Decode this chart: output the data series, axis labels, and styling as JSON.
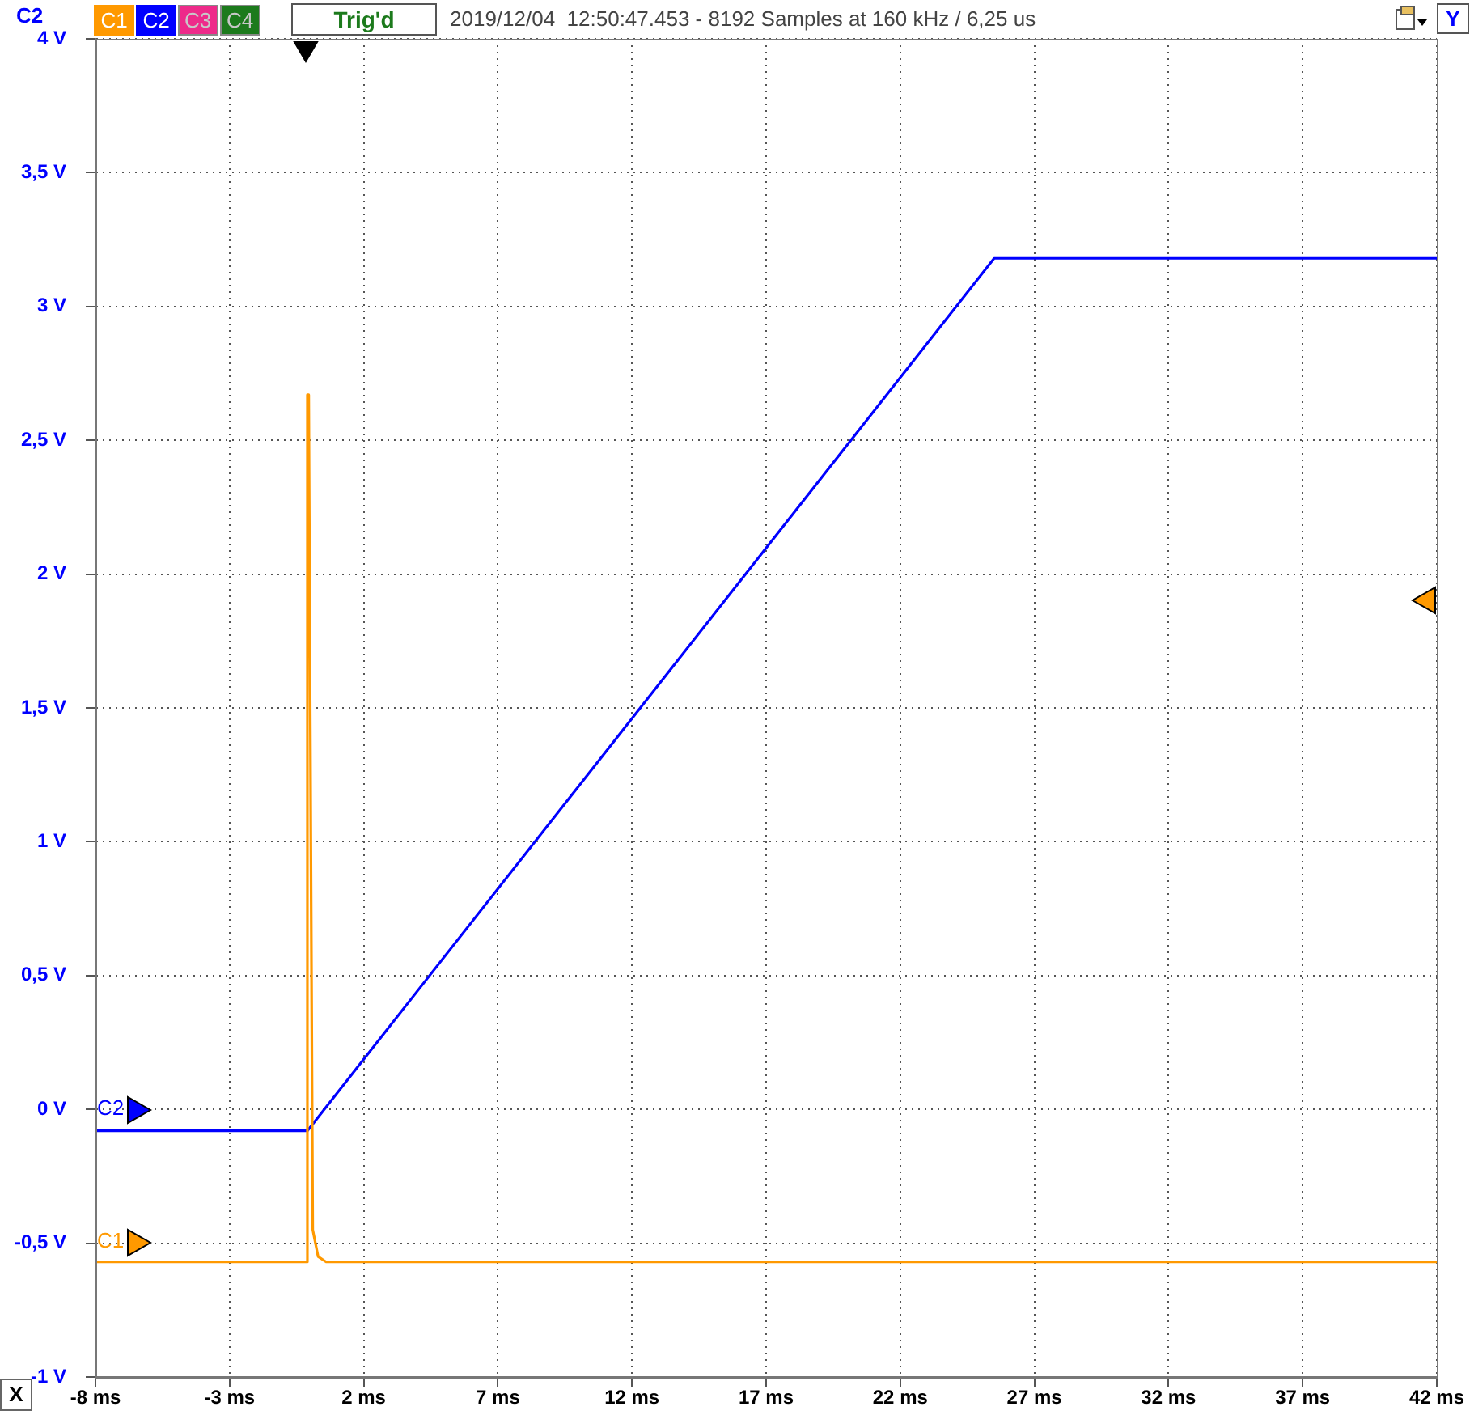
{
  "chart_data": {
    "type": "line",
    "title": "2019/12/04  12:50:47.453 - 8192 Samples at 160 kHz / 6,25 us",
    "xlabel": "X",
    "ylabel": "C2",
    "annotations": [
      "C3",
      "C4",
      "Trig'd",
      "Y"
    ],
    "xlim": [
      -8,
      42
    ],
    "xticks": [
      {
        "value": -8,
        "label": "-8 ms"
      },
      {
        "value": -3,
        "label": "-3 ms"
      },
      {
        "value": 2,
        "label": "2 ms"
      },
      {
        "value": 7,
        "label": "7 ms"
      },
      {
        "value": 12,
        "label": "12 ms"
      },
      {
        "value": 17,
        "label": "17 ms"
      },
      {
        "value": 22,
        "label": "22 ms"
      },
      {
        "value": 27,
        "label": "27 ms"
      },
      {
        "value": 32,
        "label": "32 ms"
      },
      {
        "value": 37,
        "label": "37 ms"
      },
      {
        "value": 42,
        "label": "42 ms"
      }
    ],
    "ylim": [
      -1,
      4
    ],
    "yticks": [
      {
        "value": -1,
        "label": "-1 V"
      },
      {
        "value": -0.5,
        "label": "-0,5 V"
      },
      {
        "value": 0,
        "label": "0 V"
      },
      {
        "value": 0.5,
        "label": "0,5 V"
      },
      {
        "value": 1,
        "label": "1 V"
      },
      {
        "value": 1.5,
        "label": "1,5 V"
      },
      {
        "value": 2,
        "label": "2 V"
      },
      {
        "value": 2.5,
        "label": "2,5 V"
      },
      {
        "value": 3,
        "label": "3 V"
      },
      {
        "value": 3.5,
        "label": "3,5 V"
      },
      {
        "value": 4,
        "label": "4 V"
      }
    ],
    "grid": true,
    "legend": "left",
    "marker": "none",
    "line_style": "solid",
    "series": [
      {
        "name": "C1",
        "color": "#ff9900",
        "x": [
          -8,
          -0.15,
          -0.1,
          -0.05,
          0.1,
          0.3,
          0.6,
          42
        ],
        "values": [
          -0.57,
          -0.57,
          2.67,
          2.67,
          -0.45,
          -0.55,
          -0.57,
          -0.57
        ]
      },
      {
        "name": "C2",
        "color": "#0000ff",
        "x": [
          -8,
          -0.1,
          25.5,
          42
        ],
        "values": [
          -0.08,
          -0.08,
          3.18,
          3.18
        ]
      }
    ]
  }
}
